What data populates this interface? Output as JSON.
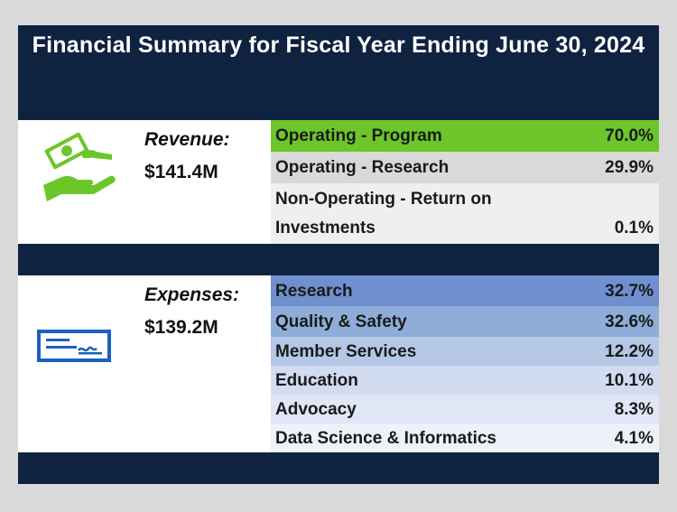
{
  "title": "Financial Summary for Fiscal Year Ending June 30, 2024",
  "revenue": {
    "label": "Revenue:",
    "amount": "$141.4M",
    "icon": "hand-money-icon",
    "rows": [
      {
        "name": "Operating - Program",
        "pct": "70.0%",
        "color": "#6cc62a"
      },
      {
        "name": "Operating - Research",
        "pct": "29.9%",
        "color": "#d9d9d9"
      },
      {
        "name_line1": "Non-Operating -  Return on",
        "name_line2": "Investments",
        "pct": "0.1%",
        "color": "#efefef"
      }
    ]
  },
  "expenses": {
    "label": "Expenses:",
    "amount": "$139.2M",
    "icon": "check-icon",
    "rows": [
      {
        "name": "Research",
        "pct": "32.7%",
        "color": "#6f8fcf"
      },
      {
        "name": "Quality & Safety",
        "pct": "32.6%",
        "color": "#8eadd8"
      },
      {
        "name": "Member Services",
        "pct": "12.2%",
        "color": "#b4c8e6"
      },
      {
        "name": "Education",
        "pct": "10.1%",
        "color": "#d1dcf1"
      },
      {
        "name": "Advocacy",
        "pct": "8.3%",
        "color": "#dfe6f5"
      },
      {
        "name": "Data Science & Informatics",
        "pct": "4.1%",
        "color": "#edf1f9"
      }
    ]
  }
}
